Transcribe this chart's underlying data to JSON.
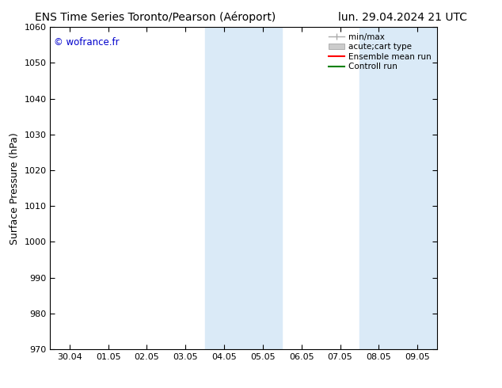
{
  "title_left": "ENS Time Series Toronto/Pearson (Aéroport)",
  "title_right": "lun. 29.04.2024 21 UTC",
  "ylabel": "Surface Pressure (hPa)",
  "ylim": [
    970,
    1060
  ],
  "yticks": [
    970,
    980,
    990,
    1000,
    1010,
    1020,
    1030,
    1040,
    1050,
    1060
  ],
  "xtick_labels": [
    "30.04",
    "01.05",
    "02.05",
    "03.05",
    "04.05",
    "05.05",
    "06.05",
    "07.05",
    "08.05",
    "09.05"
  ],
  "xtick_values": [
    0,
    1,
    2,
    3,
    4,
    5,
    6,
    7,
    8,
    9
  ],
  "shaded_regions": [
    {
      "start": 4.0,
      "end": 5.0
    },
    {
      "start": 8.0,
      "end": 9.0
    }
  ],
  "shaded_color": "#daeaf7",
  "watermark": "© wofrance.fr",
  "watermark_color": "#0000cc",
  "bg_color": "#ffffff",
  "plot_bg_color": "#ffffff",
  "tick_label_fontsize": 8,
  "title_fontsize": 10,
  "ylabel_fontsize": 9,
  "spine_color": "#000000",
  "tick_color": "#000000"
}
